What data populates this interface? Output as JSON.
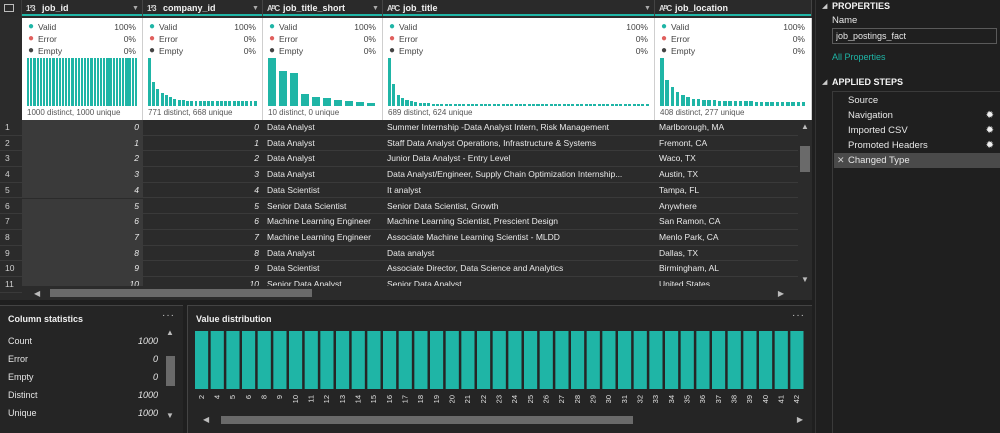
{
  "columns": [
    {
      "type": "1²3",
      "name": "job_id"
    },
    {
      "type": "1²3",
      "name": "company_id"
    },
    {
      "type": "AᴮC",
      "name": "job_title_short"
    },
    {
      "type": "AᴮC",
      "name": "job_title"
    },
    {
      "type": "AᴮC",
      "name": "job_location"
    }
  ],
  "profiles": [
    {
      "valid": "100%",
      "error": "0%",
      "empty": "0%",
      "distinct_text": "1000 distinct, 1000 unique",
      "bars": [
        1,
        1,
        1,
        1,
        1,
        1,
        1,
        1,
        1,
        1,
        1,
        1,
        1,
        1,
        1,
        1,
        1,
        1,
        1,
        1,
        1,
        1,
        1,
        1,
        1,
        1,
        1,
        1,
        1,
        1,
        1,
        1,
        1,
        1,
        1
      ]
    },
    {
      "valid": "100%",
      "error": "0%",
      "empty": "0%",
      "distinct_text": "771 distinct, 668 unique",
      "bars": [
        1,
        0.5,
        0.35,
        0.28,
        0.22,
        0.18,
        0.14,
        0.12,
        0.12,
        0.1,
        0.1,
        0.1,
        0.1,
        0.1,
        0.1,
        0.1,
        0.1,
        0.1,
        0.1,
        0.1,
        0.1,
        0.1,
        0.1,
        0.1,
        0.1,
        0.1
      ]
    },
    {
      "valid": "100%",
      "error": "0%",
      "empty": "0%",
      "distinct_text": "10 distinct, 0 unique",
      "bars": [
        1,
        0.72,
        0.68,
        0.25,
        0.18,
        0.16,
        0.13,
        0.11,
        0.09,
        0.07
      ]
    },
    {
      "valid": "100%",
      "error": "0%",
      "empty": "0%",
      "distinct_text": "689 distinct, 624 unique",
      "bars": [
        1,
        0.45,
        0.22,
        0.16,
        0.12,
        0.1,
        0.08,
        0.07,
        0.06,
        0.06,
        0.05,
        0.05,
        0.05,
        0.05,
        0.05,
        0.05,
        0.05,
        0.05,
        0.05,
        0.05,
        0.05,
        0.05,
        0.05,
        0.05,
        0.05,
        0.05,
        0.05,
        0.05,
        0.05,
        0.05,
        0.05,
        0.05,
        0.05,
        0.05,
        0.05,
        0.05,
        0.05,
        0.05,
        0.05,
        0.05,
        0.05,
        0.05,
        0.05,
        0.05,
        0.05,
        0.05,
        0.05,
        0.05,
        0.05,
        0.05,
        0.05,
        0.05,
        0.05,
        0.05,
        0.05,
        0.05,
        0.05,
        0.05,
        0.05,
        0.05
      ]
    },
    {
      "valid": "100%",
      "error": "0%",
      "empty": "0%",
      "distinct_text": "408 distinct, 277 unique",
      "bars": [
        1,
        0.55,
        0.4,
        0.3,
        0.22,
        0.18,
        0.15,
        0.14,
        0.13,
        0.12,
        0.12,
        0.11,
        0.11,
        0.1,
        0.1,
        0.1,
        0.1,
        0.1,
        0.09,
        0.09,
        0.09,
        0.09,
        0.09,
        0.09,
        0.09,
        0.09,
        0.09,
        0.09
      ]
    }
  ],
  "quality_labels": {
    "valid": "Valid",
    "error": "Error",
    "empty": "Empty"
  },
  "rows": [
    {
      "n": "1",
      "job_id": "0",
      "company_id": "0",
      "job_title_short": "Data Analyst",
      "job_title": "Summer Internship -Data Analyst Intern, Risk Management",
      "job_location": "Marlborough, MA"
    },
    {
      "n": "2",
      "job_id": "1",
      "company_id": "1",
      "job_title_short": "Data Analyst",
      "job_title": "Staff Data Analyst Operations, Infrastructure & Systems",
      "job_location": "Fremont, CA"
    },
    {
      "n": "3",
      "job_id": "2",
      "company_id": "2",
      "job_title_short": "Data Analyst",
      "job_title": "Junior Data Analyst - Entry Level",
      "job_location": "Waco, TX"
    },
    {
      "n": "4",
      "job_id": "3",
      "company_id": "3",
      "job_title_short": "Data Analyst",
      "job_title": "Data Analyst/Engineer, Supply Chain Optimization Internship...",
      "job_location": "Austin, TX"
    },
    {
      "n": "5",
      "job_id": "4",
      "company_id": "4",
      "job_title_short": "Data Scientist",
      "job_title": "It analyst",
      "job_location": "Tampa, FL"
    },
    {
      "n": "6",
      "job_id": "5",
      "company_id": "5",
      "job_title_short": "Senior Data Scientist",
      "job_title": "Senior Data Scientist, Growth",
      "job_location": "Anywhere"
    },
    {
      "n": "7",
      "job_id": "6",
      "company_id": "6",
      "job_title_short": "Machine Learning Engineer",
      "job_title": "Machine Learning Scientist, Prescient Design",
      "job_location": "San Ramon, CA"
    },
    {
      "n": "8",
      "job_id": "7",
      "company_id": "7",
      "job_title_short": "Machine Learning Engineer",
      "job_title": "Associate Machine Learning Scientist - MLDD",
      "job_location": "Menlo Park, CA"
    },
    {
      "n": "9",
      "job_id": "8",
      "company_id": "8",
      "job_title_short": "Data Analyst",
      "job_title": "Data analyst",
      "job_location": "Dallas, TX"
    },
    {
      "n": "10",
      "job_id": "9",
      "company_id": "9",
      "job_title_short": "Data Scientist",
      "job_title": "Associate Director, Data Science and Analytics",
      "job_location": "Birmingham, AL"
    },
    {
      "n": "11",
      "job_id": "10",
      "company_id": "10",
      "job_title_short": "Senior Data Analyst",
      "job_title": "Senior Data Analyst",
      "job_location": "United States"
    }
  ],
  "column_statistics": {
    "title": "Column statistics",
    "more": "···",
    "items": [
      {
        "label": "Count",
        "value": "1000"
      },
      {
        "label": "Error",
        "value": "0"
      },
      {
        "label": "Empty",
        "value": "0"
      },
      {
        "label": "Distinct",
        "value": "1000"
      },
      {
        "label": "Unique",
        "value": "1000"
      }
    ]
  },
  "value_distribution": {
    "title": "Value distribution",
    "more": "···"
  },
  "chart_data": {
    "type": "bar",
    "title": "Value distribution",
    "categories": [
      "2",
      "4",
      "5",
      "6",
      "8",
      "9",
      "10",
      "11",
      "12",
      "13",
      "14",
      "15",
      "16",
      "17",
      "18",
      "19",
      "20",
      "21",
      "22",
      "23",
      "24",
      "25",
      "26",
      "27",
      "28",
      "29",
      "30",
      "31",
      "32",
      "33",
      "34",
      "35",
      "36",
      "37",
      "38",
      "39",
      "40",
      "41",
      "42"
    ],
    "values": [
      1,
      1,
      1,
      1,
      1,
      1,
      1,
      1,
      1,
      1,
      1,
      1,
      1,
      1,
      1,
      1,
      1,
      1,
      1,
      1,
      1,
      1,
      1,
      1,
      1,
      1,
      1,
      1,
      1,
      1,
      1,
      1,
      1,
      1,
      1,
      1,
      1,
      1,
      1
    ],
    "ylim": [
      0,
      1
    ],
    "bar_color": "#1fb5a6",
    "grid": false
  },
  "properties": {
    "title": "PROPERTIES",
    "name_label": "Name",
    "name_value": "job_postings_fact",
    "all_properties": "All Properties"
  },
  "applied_steps": {
    "title": "APPLIED STEPS",
    "items": [
      {
        "label": "Source",
        "gear": false,
        "active": false
      },
      {
        "label": "Navigation",
        "gear": true,
        "active": false
      },
      {
        "label": "Imported CSV",
        "gear": true,
        "active": false
      },
      {
        "label": "Promoted Headers",
        "gear": true,
        "active": false
      },
      {
        "label": "Changed Type",
        "gear": false,
        "active": true
      }
    ]
  },
  "colors": {
    "accent": "#1fb5a6",
    "error": "#e0605e"
  }
}
